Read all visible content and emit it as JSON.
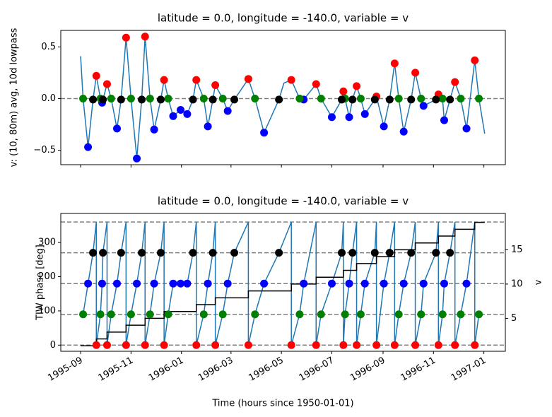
{
  "chart_data": [
    {
      "type": "line",
      "title": "latitude = 0.0, longitude = -140.0, variable = v",
      "ylabel": "v: (10, 80m) avg, 10d lowpass",
      "xlim": [
        399720,
        412632
      ],
      "ylim": [
        -0.64,
        0.66
      ],
      "xticks": [
        400296,
        401760,
        403224,
        404664,
        406128,
        407592,
        409080,
        410544,
        412008
      ],
      "yticks": [
        {
          "value": -0.5,
          "label": "−0.5"
        },
        {
          "value": 0,
          "label": "0.0"
        },
        0.5
      ],
      "hlines": [
        0
      ],
      "hline_color": "#808080",
      "series": [
        {
          "color": "#1f77b4",
          "x": [
            400296,
            400368,
            400512,
            400656,
            400752,
            400872,
            400920,
            400944,
            401064,
            401184,
            401352,
            401472,
            401616,
            401760,
            401928,
            402072,
            402168,
            402312,
            402432,
            402624,
            402720,
            402840,
            402984,
            403200,
            403392,
            403560,
            403656,
            403872,
            403992,
            404136,
            404208,
            404424,
            404568,
            404760,
            405168,
            405360,
            405624,
            406056,
            406200,
            406416,
            406656,
            406776,
            407136,
            407280,
            407592,
            407880,
            407928,
            407976,
            408096,
            408192,
            408312,
            408432,
            408552,
            408840,
            408888,
            409104,
            409272,
            409416,
            409536,
            409680,
            409896,
            410016,
            410184,
            410256,
            410616,
            410688,
            410808,
            410856,
            411024,
            411168,
            411336,
            411504,
            411744,
            411864,
            412032
          ],
          "values": [
            0.41,
            0,
            -0.47,
            -0.01,
            0.22,
            0,
            -0.04,
            -0.01,
            0.14,
            0,
            -0.29,
            -0.01,
            0.59,
            0,
            -0.58,
            0,
            0.6,
            0,
            -0.3,
            -0.01,
            0.18,
            0,
            -0.17,
            -0.11,
            -0.15,
            -0.01,
            0.18,
            0,
            -0.27,
            -0.01,
            0.13,
            0,
            -0.12,
            -0.01,
            0.19,
            0,
            -0.33,
            -0.01,
            0.15,
            0.18,
            0,
            -0.01,
            0.14,
            0,
            -0.18,
            -0.01,
            0.07,
            0,
            -0.18,
            -0.01,
            0.12,
            0,
            -0.15,
            -0.01,
            0.02,
            -0.27,
            -0.01,
            0.34,
            0,
            -0.32,
            -0.01,
            0.25,
            0,
            -0.07,
            -0.01,
            0.04,
            0,
            -0.21,
            -0.01,
            0.16,
            0,
            -0.29,
            0.37,
            0,
            -0.34
          ]
        },
        {
          "color": "#ff0000",
          "marker": true,
          "x": [
            400752,
            401064,
            401616,
            402168,
            402720,
            403656,
            404208,
            405168,
            406416,
            407136,
            407928,
            408312,
            408888,
            409416,
            410016,
            410688,
            411168,
            411744
          ],
          "values": [
            0.22,
            0.14,
            0.59,
            0.6,
            0.18,
            0.18,
            0.13,
            0.19,
            0.18,
            0.14,
            0.07,
            0.12,
            0.02,
            0.34,
            0.25,
            0.04,
            0.16,
            0.37
          ]
        },
        {
          "color": "#0000ff",
          "marker": true,
          "x": [
            400512,
            400920,
            401352,
            401928,
            402432,
            402984,
            403200,
            403392,
            403992,
            404568,
            405624,
            406776,
            407592,
            408096,
            408552,
            409104,
            409680,
            410256,
            410856,
            411504
          ],
          "values": [
            -0.47,
            -0.04,
            -0.29,
            -0.58,
            -0.3,
            -0.17,
            -0.11,
            -0.15,
            -0.27,
            -0.12,
            -0.33,
            -0.01,
            -0.18,
            -0.18,
            -0.15,
            -0.27,
            -0.32,
            -0.07,
            -0.21,
            -0.29
          ]
        },
        {
          "color": "#008000",
          "marker": true,
          "x": [
            400368,
            400872,
            401184,
            401760,
            402312,
            402840,
            403872,
            404424,
            405360,
            406656,
            407280,
            407976,
            408432,
            409536,
            410184,
            410808,
            411336,
            411864
          ],
          "values": [
            0,
            0,
            0,
            0,
            0,
            0,
            0,
            0,
            0,
            0,
            0,
            0,
            0,
            0,
            0,
            0,
            0,
            0
          ]
        },
        {
          "color": "#000000",
          "marker": true,
          "x": [
            400656,
            400944,
            401472,
            402072,
            402624,
            403560,
            404136,
            404760,
            406056,
            407880,
            408192,
            408840,
            409272,
            409896,
            410616,
            411024
          ],
          "values": [
            -0.01,
            -0.01,
            -0.01,
            -0.01,
            -0.01,
            -0.01,
            -0.01,
            -0.01,
            -0.01,
            -0.01,
            -0.01,
            -0.01,
            -0.01,
            -0.01,
            -0.01,
            -0.01
          ]
        }
      ]
    },
    {
      "type": "line",
      "title": "latitude = 0.0, longitude = -140.0, variable = v",
      "ylabel": "TIW phase [deg]",
      "y2label": "v",
      "xlabel": "Time (hours since 1950-01-01)",
      "xlim": [
        399720,
        412632
      ],
      "ylim": [
        -18,
        385
      ],
      "y2lim": [
        0.2,
        20.3
      ],
      "xticks": [
        {
          "value": 400296,
          "label": "1995-09"
        },
        {
          "value": 401760,
          "label": "1995-11"
        },
        {
          "value": 403224,
          "label": "1996-01"
        },
        {
          "value": 404664,
          "label": "1996-03"
        },
        {
          "value": 406128,
          "label": "1996-05"
        },
        {
          "value": 407592,
          "label": "1996-07"
        },
        {
          "value": 409080,
          "label": "1996-09"
        },
        {
          "value": 410544,
          "label": "1996-11"
        },
        {
          "value": 412008,
          "label": "1997-01"
        }
      ],
      "yticks": [
        0,
        100,
        200,
        300
      ],
      "y2ticks": [
        5,
        10,
        15
      ],
      "hlines": [
        0,
        90,
        180,
        270,
        360
      ],
      "hline_color": "#808080",
      "series": [
        {
          "color": "#1f77b4",
          "x": [
            400368,
            400512,
            400656,
            400752,
            400752,
            400872,
            400920,
            400944,
            401064,
            401064,
            401184,
            401352,
            401472,
            401616,
            401616,
            401760,
            401928,
            402072,
            402168,
            402168,
            402312,
            402432,
            402624,
            402720,
            402720,
            402840,
            402984,
            403200,
            403392,
            403560,
            403656,
            403656,
            403872,
            403992,
            404136,
            404208,
            404208,
            404424,
            404568,
            404760,
            405168,
            405168,
            405360,
            405624,
            406056,
            406416,
            406416,
            406656,
            406776,
            407136,
            407136,
            407280,
            407592,
            407880,
            407928,
            407928,
            407976,
            408096,
            408192,
            408312,
            408312,
            408432,
            408552,
            408840,
            408888,
            408888,
            409104,
            409272,
            409416,
            409416,
            409536,
            409680,
            409896,
            410016,
            410016,
            410184,
            410256,
            410616,
            410688,
            410688,
            410808,
            410856,
            411024,
            411168,
            411168,
            411336,
            411504,
            411744,
            411744,
            411864
          ],
          "values": [
            90,
            180,
            270,
            360,
            0,
            90,
            180,
            270,
            360,
            0,
            90,
            180,
            270,
            360,
            0,
            90,
            180,
            270,
            360,
            0,
            90,
            180,
            270,
            360,
            0,
            90,
            180,
            180,
            180,
            270,
            360,
            0,
            90,
            180,
            270,
            360,
            0,
            90,
            180,
            270,
            360,
            0,
            90,
            180,
            270,
            360,
            0,
            90,
            180,
            360,
            0,
            90,
            180,
            270,
            360,
            0,
            90,
            180,
            270,
            360,
            0,
            90,
            180,
            270,
            360,
            0,
            180,
            270,
            360,
            0,
            90,
            180,
            270,
            360,
            0,
            90,
            180,
            270,
            360,
            0,
            90,
            180,
            270,
            360,
            0,
            90,
            180,
            360,
            0,
            90
          ]
        },
        {
          "color": "#ff0000",
          "marker": true,
          "x": [
            400752,
            401064,
            401616,
            402168,
            402720,
            403656,
            404208,
            405168,
            406416,
            407136,
            407928,
            408312,
            408888,
            409416,
            410016,
            410688,
            411168,
            411744
          ],
          "values": [
            0,
            0,
            0,
            0,
            0,
            0,
            0,
            0,
            0,
            0,
            0,
            0,
            0,
            0,
            0,
            0,
            0,
            0
          ]
        },
        {
          "color": "#0000ff",
          "marker": true,
          "x": [
            400512,
            400920,
            401352,
            401928,
            402432,
            402984,
            403200,
            403392,
            403992,
            404568,
            405624,
            406776,
            407592,
            408096,
            408552,
            409104,
            409680,
            410256,
            410856,
            411504
          ],
          "values": [
            180,
            180,
            180,
            180,
            180,
            180,
            180,
            180,
            180,
            180,
            180,
            180,
            180,
            180,
            180,
            180,
            180,
            180,
            180,
            180
          ]
        },
        {
          "color": "#008000",
          "marker": true,
          "x": [
            400368,
            400872,
            401184,
            401760,
            402312,
            402840,
            403872,
            404424,
            405360,
            406656,
            407280,
            407976,
            408432,
            409536,
            410184,
            410808,
            411336,
            411864
          ],
          "values": [
            90,
            90,
            90,
            90,
            90,
            90,
            90,
            90,
            90,
            90,
            90,
            90,
            90,
            90,
            90,
            90,
            90,
            90
          ]
        },
        {
          "color": "#000000",
          "marker": true,
          "x": [
            400656,
            400944,
            401472,
            402072,
            402624,
            403560,
            404136,
            404760,
            406056,
            407880,
            408192,
            408840,
            409272,
            409896,
            410616,
            411024
          ],
          "values": [
            270,
            270,
            270,
            270,
            270,
            270,
            270,
            270,
            270,
            270,
            270,
            270,
            270,
            270,
            270,
            270
          ]
        },
        {
          "color": "#000000",
          "axis": "y2",
          "drawstyle": "steps-post",
          "x": [
            400296,
            400752,
            401064,
            401616,
            402168,
            402720,
            403656,
            404208,
            405168,
            406416,
            407136,
            407928,
            408312,
            408888,
            409416,
            410016,
            410688,
            411168,
            411744,
            412032
          ],
          "values": [
            1,
            2,
            3,
            4,
            5,
            6,
            7,
            8,
            9,
            10,
            11,
            12,
            13,
            14,
            15,
            16,
            17,
            18,
            19,
            19
          ]
        }
      ]
    }
  ]
}
